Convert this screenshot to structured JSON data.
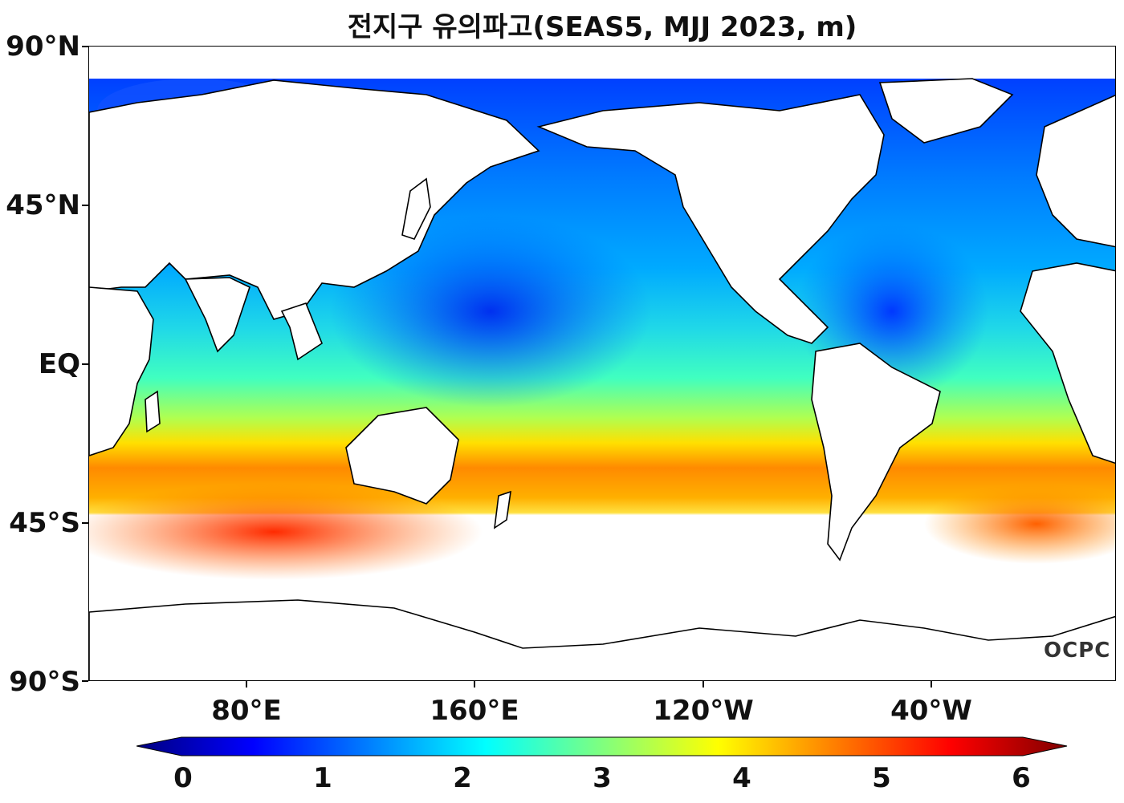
{
  "title": "전지구 유의파고(SEAS5, MJJ 2023, m)",
  "lat_labels": [
    "90°N",
    "45°N",
    "EQ",
    "45°S",
    "90°S"
  ],
  "lon_labels": [
    "80°E",
    "160°E",
    "120°W",
    "40°W"
  ],
  "colorbar": {
    "ticks": [
      "0",
      "1",
      "2",
      "3",
      "4",
      "5",
      "6"
    ],
    "colors": [
      "#00007f",
      "#0000ff",
      "#007fff",
      "#00ffff",
      "#7fff7f",
      "#ffff00",
      "#ff7f00",
      "#ff0000",
      "#7f0000"
    ]
  },
  "watermark": "OCPC",
  "colors": {
    "land": "#ffffff",
    "coastline": "#000000",
    "calm_sea": "#1a4dff",
    "pacific": "#1aa0ff",
    "tropical": "#40e0e0",
    "subtropical_south": "#a0ff60",
    "southern_ocean": "#ffc000",
    "storm_belt": "#ff5000"
  }
}
